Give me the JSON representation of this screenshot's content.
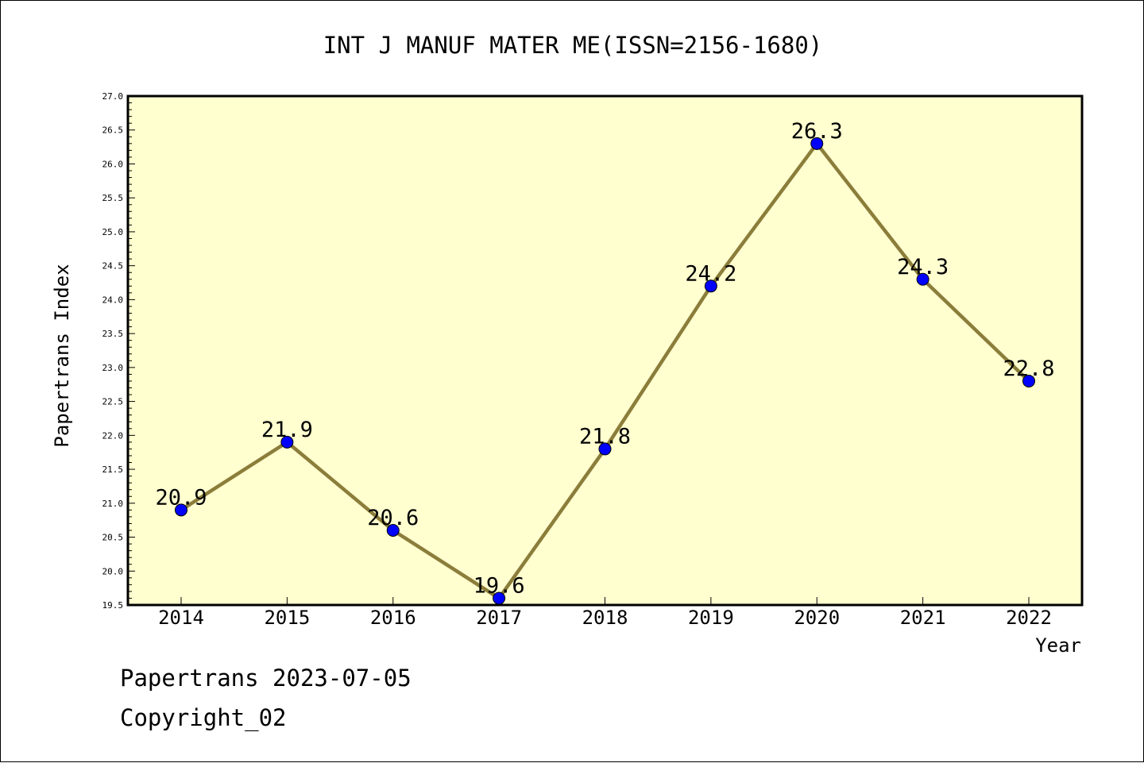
{
  "chart_data": {
    "type": "line",
    "title": "INT J MANUF MATER ME(ISSN=2156-1680)",
    "xlabel": "Year",
    "ylabel": "Papertrans Index",
    "categories": [
      "2014",
      "2015",
      "2016",
      "2017",
      "2018",
      "2019",
      "2020",
      "2021",
      "2022"
    ],
    "values": [
      20.9,
      21.9,
      20.6,
      19.6,
      21.8,
      24.2,
      26.3,
      24.3,
      22.8
    ],
    "data_labels": [
      "20.9",
      "21.9",
      "20.6",
      "19.6",
      "21.8",
      "24.2",
      "26.3",
      "24.3",
      "22.8"
    ],
    "ylim": [
      19.5,
      27.0
    ],
    "yticks": [
      "19.5",
      "20.0",
      "20.5",
      "21.0",
      "21.5",
      "22.0",
      "22.5",
      "23.0",
      "23.5",
      "24.0",
      "24.5",
      "25.0",
      "25.5",
      "26.0",
      "26.5",
      "27.0"
    ],
    "grid": false,
    "colors": {
      "plot_background": "#ffffd0",
      "line": "#8b7d3a",
      "marker": "#0000ff"
    }
  },
  "footer": {
    "line1": "Papertrans 2023-07-05",
    "line2": "Copyright_02"
  }
}
